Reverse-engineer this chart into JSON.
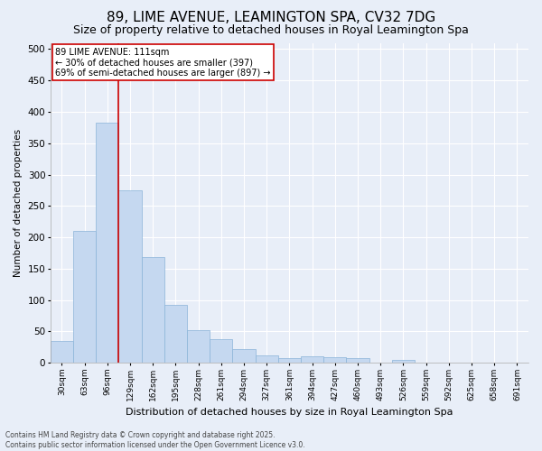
{
  "title": "89, LIME AVENUE, LEAMINGTON SPA, CV32 7DG",
  "subtitle": "Size of property relative to detached houses in Royal Leamington Spa",
  "xlabel": "Distribution of detached houses by size in Royal Leamington Spa",
  "ylabel": "Number of detached properties",
  "categories": [
    "30sqm",
    "63sqm",
    "96sqm",
    "129sqm",
    "162sqm",
    "195sqm",
    "228sqm",
    "261sqm",
    "294sqm",
    "327sqm",
    "361sqm",
    "394sqm",
    "427sqm",
    "460sqm",
    "493sqm",
    "526sqm",
    "559sqm",
    "592sqm",
    "625sqm",
    "658sqm",
    "691sqm"
  ],
  "values": [
    35,
    210,
    383,
    275,
    168,
    92,
    52,
    38,
    22,
    12,
    7,
    10,
    9,
    8,
    0,
    5,
    0,
    0,
    0,
    0,
    0
  ],
  "bar_color": "#c5d8f0",
  "bar_edge_color": "#8ab4d8",
  "vline_color": "#cc0000",
  "annotation_line1": "89 LIME AVENUE: 111sqm",
  "annotation_line2": "← 30% of detached houses are smaller (397)",
  "annotation_line3": "69% of semi-detached houses are larger (897) →",
  "annotation_box_color": "#ffffff",
  "annotation_box_edgecolor": "#cc0000",
  "footer_text": "Contains HM Land Registry data © Crown copyright and database right 2025.\nContains public sector information licensed under the Open Government Licence v3.0.",
  "ylim": [
    0,
    510
  ],
  "yticks": [
    0,
    50,
    100,
    150,
    200,
    250,
    300,
    350,
    400,
    450,
    500
  ],
  "title_fontsize": 11,
  "subtitle_fontsize": 9,
  "bg_color": "#e8eef8",
  "plot_bg_color": "#e8eef8"
}
